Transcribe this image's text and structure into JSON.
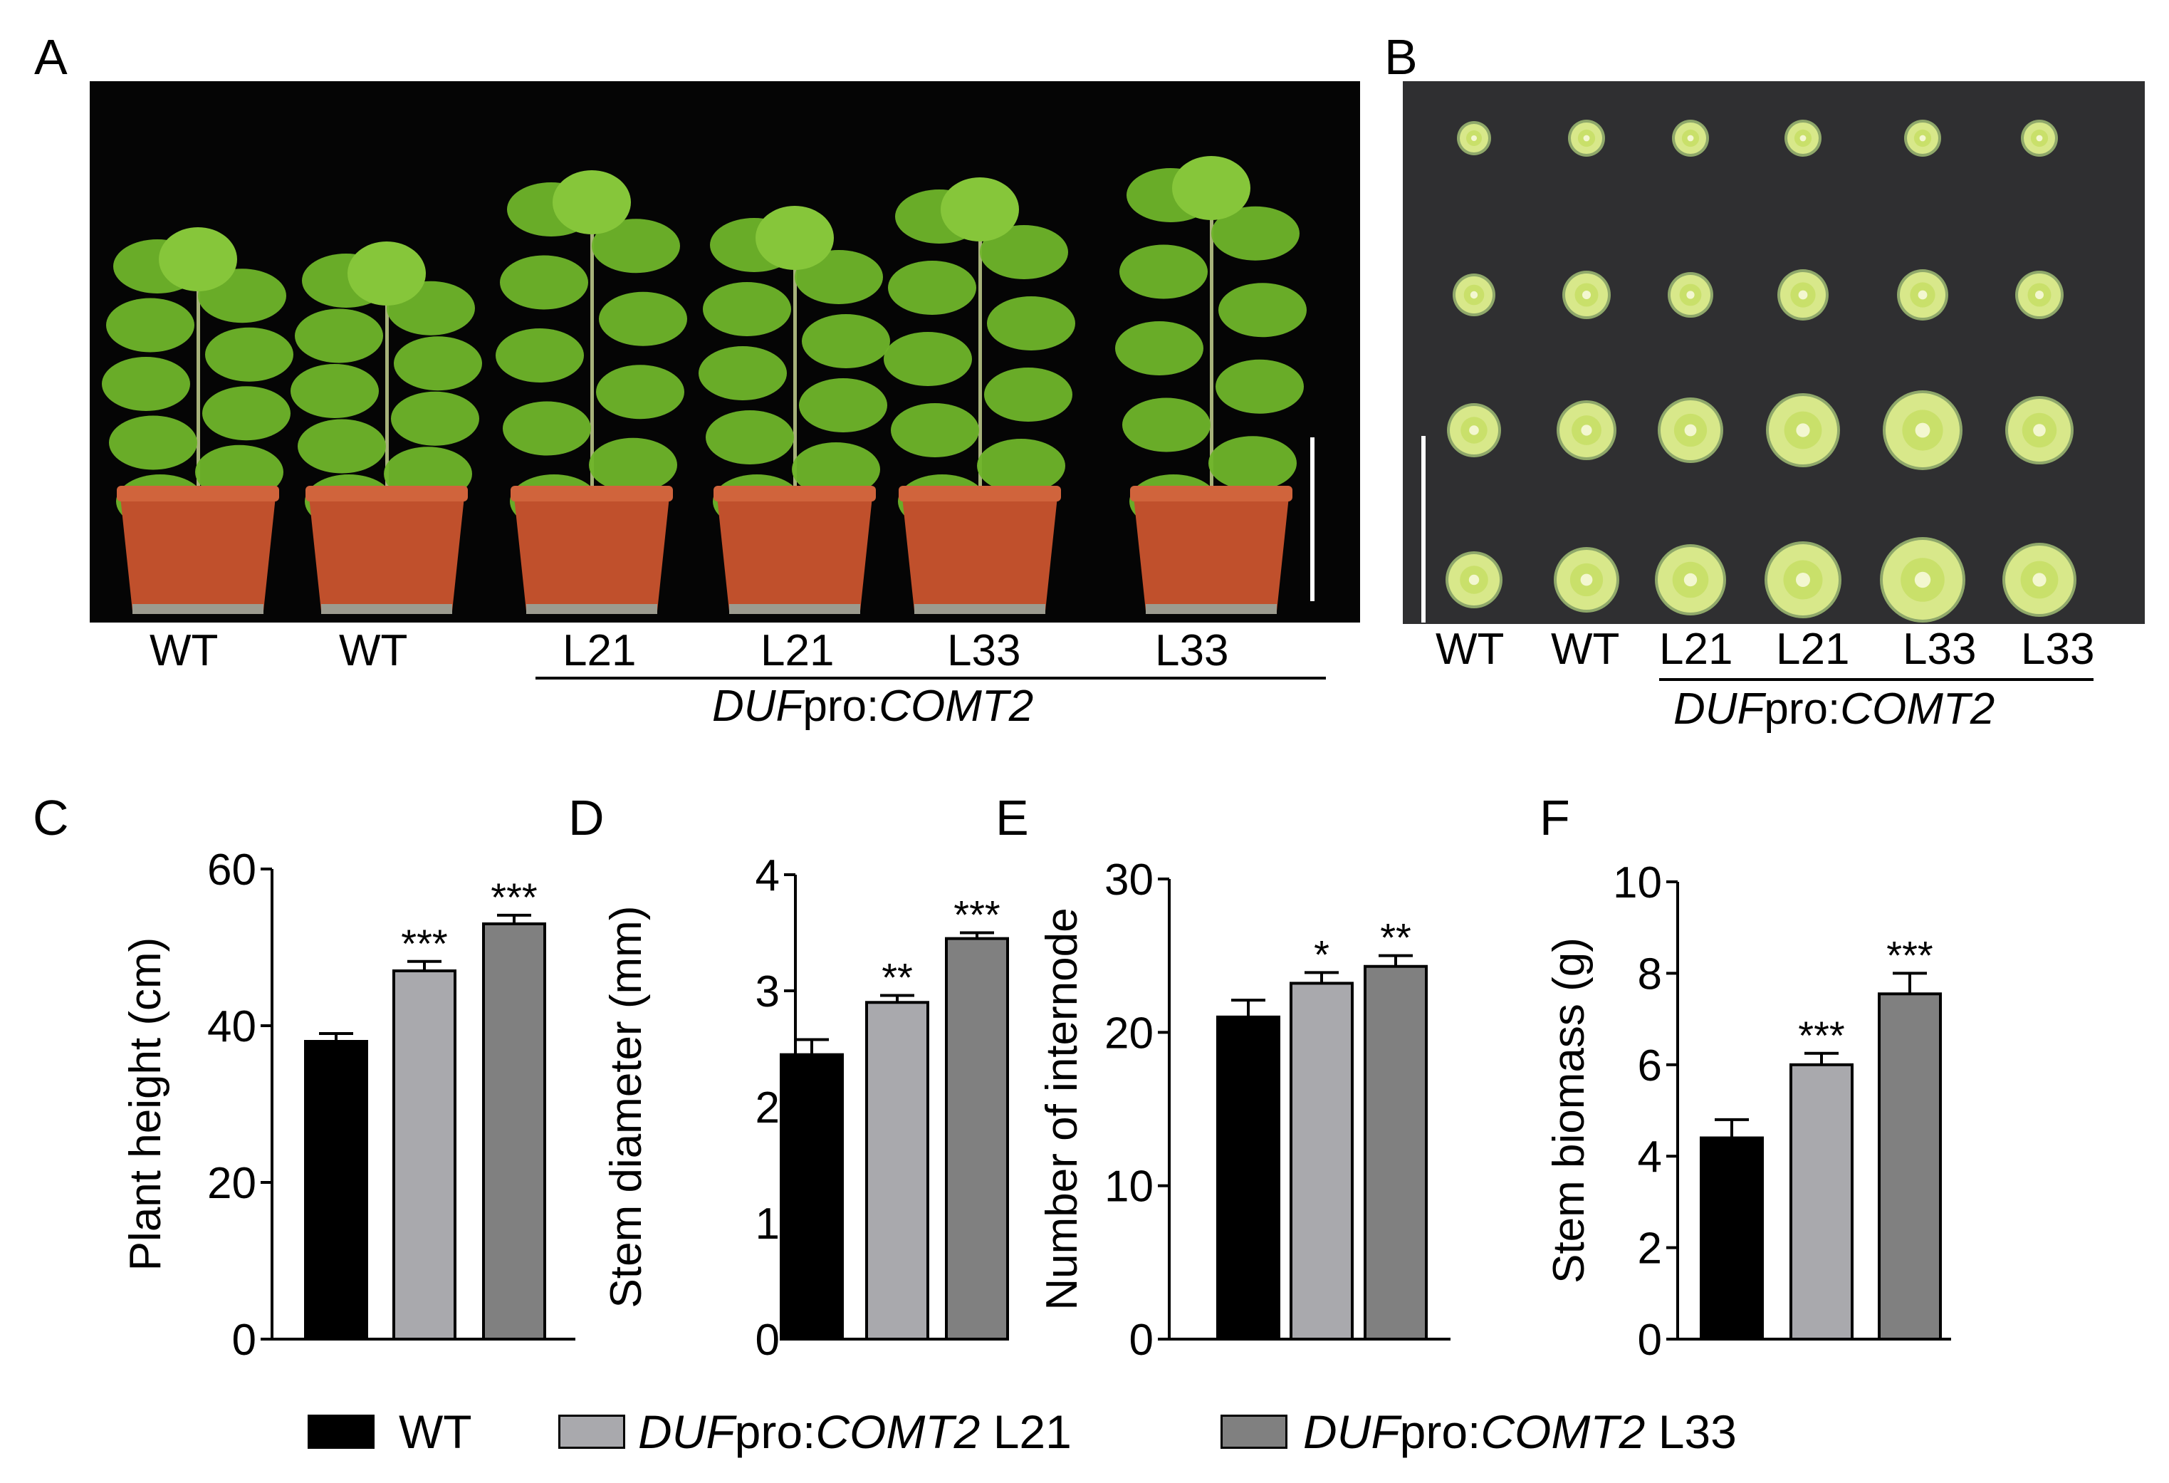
{
  "figure": {
    "panel_labels": [
      "A",
      "B",
      "C",
      "D",
      "E",
      "F"
    ],
    "panel_a": {
      "plant_labels": [
        "WT",
        "WT",
        "L21",
        "L21",
        "L33",
        "L33"
      ],
      "construct_italic": "DUF",
      "construct_mid": "pro:",
      "construct_italic2": "COMT2"
    },
    "panel_b": {
      "column_labels": [
        "WT",
        "WT",
        "L21",
        "L21",
        "L33",
        "L33"
      ],
      "construct_italic": "DUF",
      "construct_mid": "pro:",
      "construct_italic2": "COMT2"
    },
    "legend": [
      {
        "italic": "",
        "mid": "",
        "italic2": "",
        "suffix": "WT",
        "color": "#000000"
      },
      {
        "italic": "DUF",
        "mid": "pro:",
        "italic2": "COMT2",
        "suffix": " L21",
        "color": "#a9a9ad"
      },
      {
        "italic": "DUF",
        "mid": "pro:",
        "italic2": "COMT2",
        "suffix": " L33",
        "color": "#808080"
      }
    ],
    "colors": {
      "wt": "#000000",
      "l21": "#a9a9ad",
      "l33": "#808080",
      "photo_a_bg": "#050505",
      "photo_b_bg": "#2f2f31",
      "leaf": "#6fb52a",
      "pot": "#c0502c",
      "stem_section": "#d8e88a"
    }
  },
  "chart_data": [
    {
      "type": "bar",
      "panel": "C",
      "categories": [
        "WT",
        "DUFpro:COMT2 L21",
        "DUFpro:COMT2 L33"
      ],
      "values": [
        38,
        47,
        53
      ],
      "errors": [
        1,
        1.2,
        1.1
      ],
      "significance": [
        "",
        "***",
        "***"
      ],
      "ylabel": "Plant height (cm)",
      "ylim": [
        0,
        60
      ],
      "yticks": [
        "0",
        "20",
        "40",
        "60"
      ]
    },
    {
      "type": "bar",
      "panel": "D",
      "categories": [
        "WT",
        "DUFpro:COMT2 L21",
        "DUFpro:COMT2 L33"
      ],
      "values": [
        2.45,
        2.9,
        3.45
      ],
      "errors": [
        0.13,
        0.06,
        0.05
      ],
      "significance": [
        "",
        "**",
        "***"
      ],
      "ylabel": "Stem diameter (mm)",
      "ylim": [
        0,
        4
      ],
      "yticks": [
        "0",
        "1",
        "2",
        "3",
        "4"
      ]
    },
    {
      "type": "bar",
      "panel": "E",
      "categories": [
        "WT",
        "DUFpro:COMT2 L21",
        "DUFpro:COMT2 L33"
      ],
      "values": [
        21,
        23.2,
        24.3
      ],
      "errors": [
        1.1,
        0.7,
        0.7
      ],
      "significance": [
        "",
        "*",
        "**"
      ],
      "ylabel": "Number of internode",
      "ylim": [
        0,
        30
      ],
      "yticks": [
        "0",
        "10",
        "20",
        "30"
      ]
    },
    {
      "type": "bar",
      "panel": "F",
      "categories": [
        "WT",
        "DUFpro:COMT2 L21",
        "DUFpro:COMT2 L33"
      ],
      "values": [
        4.4,
        6.0,
        7.55
      ],
      "errors": [
        0.4,
        0.25,
        0.45
      ],
      "significance": [
        "",
        "***",
        "***"
      ],
      "ylabel": "Stem biomass (g)",
      "ylim": [
        0,
        10
      ],
      "yticks": [
        "0",
        "2",
        "4",
        "6",
        "8",
        "10"
      ]
    }
  ]
}
